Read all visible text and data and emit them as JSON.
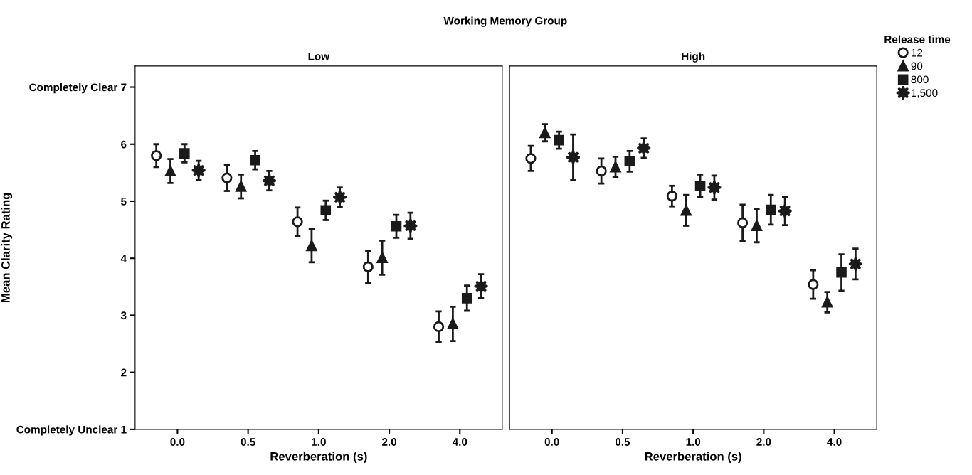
{
  "chart_data": [
    {
      "type": "scatter",
      "title": "Low",
      "xlabel": "Reverberation (s)",
      "ylabel": "Mean Clarity Rating",
      "annotations": [
        "Working Memory Group"
      ],
      "categories": [
        "0.0",
        "0.5",
        "1.0",
        "2.0",
        "4.0"
      ],
      "ylim": [
        1,
        7.37
      ],
      "yticks": [
        {
          "value": 1,
          "label": "Completely Unclear 1"
        },
        2,
        3,
        4,
        5,
        6,
        {
          "value": 7,
          "label": "Completely Clear 7"
        }
      ],
      "grid": false,
      "legend": "right",
      "legend_title": "Release time",
      "series": [
        {
          "name": "12",
          "marker": "circle",
          "color": "#1a1a1a",
          "values": [
            5.8,
            5.41,
            4.64,
            3.85,
            2.8
          ],
          "errors": [
            0.2,
            0.23,
            0.25,
            0.28,
            0.27
          ]
        },
        {
          "name": "90",
          "marker": "triangle",
          "color": "#1a1a1a",
          "values": [
            5.53,
            5.26,
            4.22,
            4.01,
            2.85
          ],
          "errors": [
            0.21,
            0.21,
            0.29,
            0.3,
            0.3
          ]
        },
        {
          "name": "800",
          "marker": "square",
          "color": "#1a1a1a",
          "values": [
            5.84,
            5.72,
            4.84,
            4.56,
            3.3
          ],
          "errors": [
            0.16,
            0.16,
            0.17,
            0.2,
            0.22
          ]
        },
        {
          "name": "1,500",
          "marker": "star",
          "color": "#1a1a1a",
          "values": [
            5.54,
            5.36,
            5.07,
            4.57,
            3.51
          ],
          "errors": [
            0.17,
            0.17,
            0.17,
            0.23,
            0.21
          ]
        }
      ]
    },
    {
      "type": "scatter",
      "title": "High",
      "xlabel": "Reverberation (s)",
      "categories": [
        "0.0",
        "0.5",
        "1.0",
        "2.0",
        "4.0"
      ],
      "ylim": [
        1,
        7.37
      ],
      "tick_labels": "x",
      "grid": false,
      "legend": false,
      "series": [
        {
          "name": "12",
          "marker": "circle",
          "color": "#1a1a1a",
          "values": [
            5.75,
            5.53,
            5.09,
            4.62,
            3.54
          ],
          "errors": [
            0.22,
            0.22,
            0.18,
            0.32,
            0.25
          ]
        },
        {
          "name": "90",
          "marker": "triangle",
          "color": "#1a1a1a",
          "values": [
            6.2,
            5.6,
            4.84,
            4.57,
            3.23
          ],
          "errors": [
            0.15,
            0.18,
            0.27,
            0.29,
            0.18
          ]
        },
        {
          "name": "800",
          "marker": "square",
          "color": "#1a1a1a",
          "values": [
            6.07,
            5.7,
            5.27,
            4.85,
            3.75
          ],
          "errors": [
            0.15,
            0.18,
            0.2,
            0.26,
            0.32
          ]
        },
        {
          "name": "1,500",
          "marker": "star",
          "color": "#1a1a1a",
          "values": [
            5.77,
            5.93,
            5.24,
            4.83,
            3.9
          ],
          "errors": [
            0.4,
            0.17,
            0.21,
            0.25,
            0.27
          ]
        }
      ]
    }
  ]
}
